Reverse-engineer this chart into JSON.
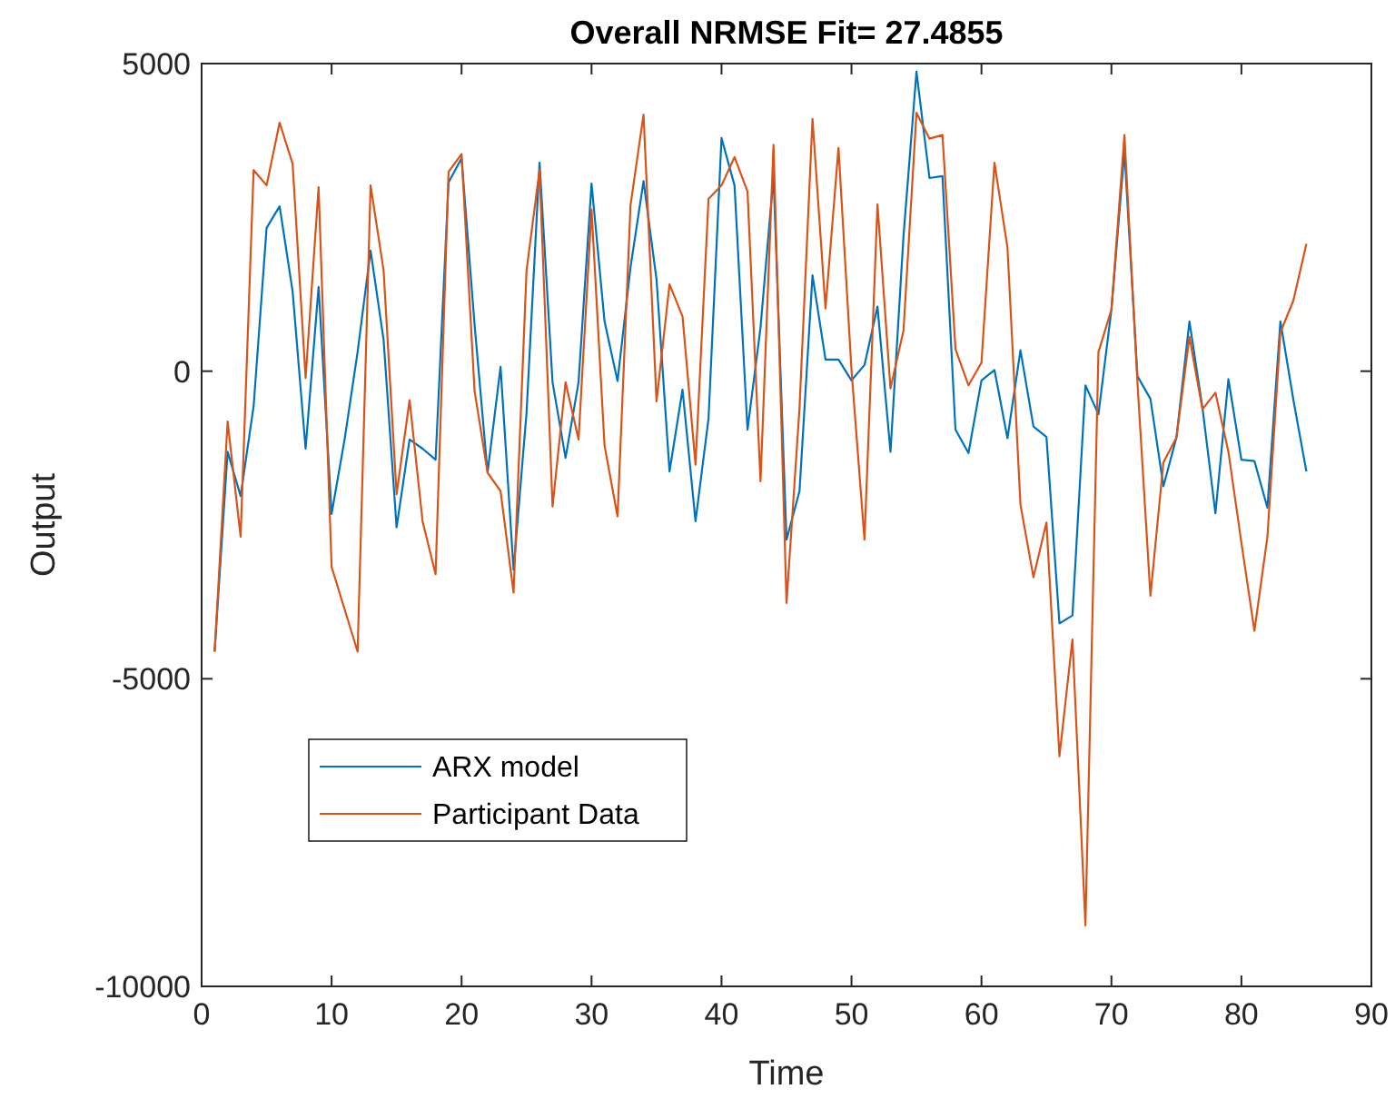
{
  "chart_data": {
    "type": "line",
    "title": "Overall NRMSE Fit= 27.4855",
    "xlabel": "Time",
    "ylabel": "Output",
    "x": [
      1,
      2,
      3,
      4,
      5,
      6,
      7,
      8,
      9,
      10,
      11,
      12,
      13,
      14,
      15,
      16,
      17,
      18,
      19,
      20,
      21,
      22,
      23,
      24,
      25,
      26,
      27,
      28,
      29,
      30,
      31,
      32,
      33,
      34,
      35,
      36,
      37,
      38,
      39,
      40,
      41,
      42,
      43,
      44,
      45,
      46,
      47,
      48,
      49,
      50,
      51,
      52,
      53,
      54,
      55,
      56,
      57,
      58,
      59,
      60,
      61,
      62,
      63,
      64,
      65,
      66,
      67,
      68,
      69,
      70,
      71,
      72,
      73,
      74,
      75,
      76,
      77,
      78,
      79,
      80,
      81,
      82,
      83,
      84,
      85
    ],
    "series": [
      {
        "name": "ARX model",
        "color": "#0072bd",
        "values": [
          -4560,
          -1310,
          -2030,
          -570,
          2330,
          2680,
          1300,
          -1260,
          1370,
          -2320,
          -1110,
          310,
          1960,
          510,
          -2540,
          -1110,
          -1260,
          -1440,
          3070,
          3460,
          760,
          -1650,
          70,
          -3230,
          -670,
          3390,
          -180,
          -1410,
          -180,
          3050,
          810,
          -160,
          1690,
          3090,
          1490,
          -1630,
          -300,
          -2440,
          -770,
          3790,
          3020,
          -950,
          710,
          3170,
          -2740,
          -1950,
          1560,
          190,
          190,
          -150,
          100,
          1050,
          -1310,
          2190,
          4870,
          3140,
          3170,
          -950,
          -1330,
          -150,
          20,
          -1090,
          340,
          -900,
          -1070,
          -4100,
          -3970,
          -230,
          -700,
          1000,
          3580,
          -80,
          -450,
          -1870,
          -1080,
          810,
          -590,
          -2310,
          -130,
          -1440,
          -1460,
          -2220,
          810,
          -470,
          -1630
        ]
      },
      {
        "name": "Participant Data",
        "color": "#d95319",
        "values": [
          -4560,
          -820,
          -2690,
          3270,
          3020,
          4040,
          3370,
          -110,
          2990,
          -3180,
          -3870,
          -4560,
          3020,
          1640,
          -2000,
          -470,
          -2440,
          -3300,
          3240,
          3530,
          -320,
          -1650,
          -1950,
          -3600,
          1640,
          3270,
          -2200,
          -180,
          -1110,
          2630,
          -1210,
          -2360,
          2700,
          4170,
          -490,
          1410,
          890,
          -1520,
          2800,
          3020,
          3480,
          2920,
          -1790,
          3680,
          -3770,
          -600,
          4100,
          1020,
          3630,
          20,
          -2740,
          2710,
          -280,
          660,
          4200,
          3780,
          3840,
          360,
          -230,
          140,
          3390,
          2010,
          -2170,
          -3350,
          -2460,
          -6260,
          -4360,
          -9010,
          310,
          1000,
          3840,
          -180,
          -3650,
          -1480,
          -1080,
          560,
          -620,
          -350,
          -1310,
          -2790,
          -4220,
          -2690,
          630,
          1150,
          2070
        ]
      }
    ],
    "xlim": [
      0,
      90
    ],
    "xticks": [
      0,
      10,
      20,
      30,
      40,
      50,
      60,
      70,
      80,
      90
    ],
    "ylim": [
      -10000,
      5000
    ],
    "yticks": [
      -10000,
      -5000,
      0,
      5000
    ],
    "legend": "bottom left",
    "line_style": "solid",
    "marker": "none",
    "grid": false
  }
}
